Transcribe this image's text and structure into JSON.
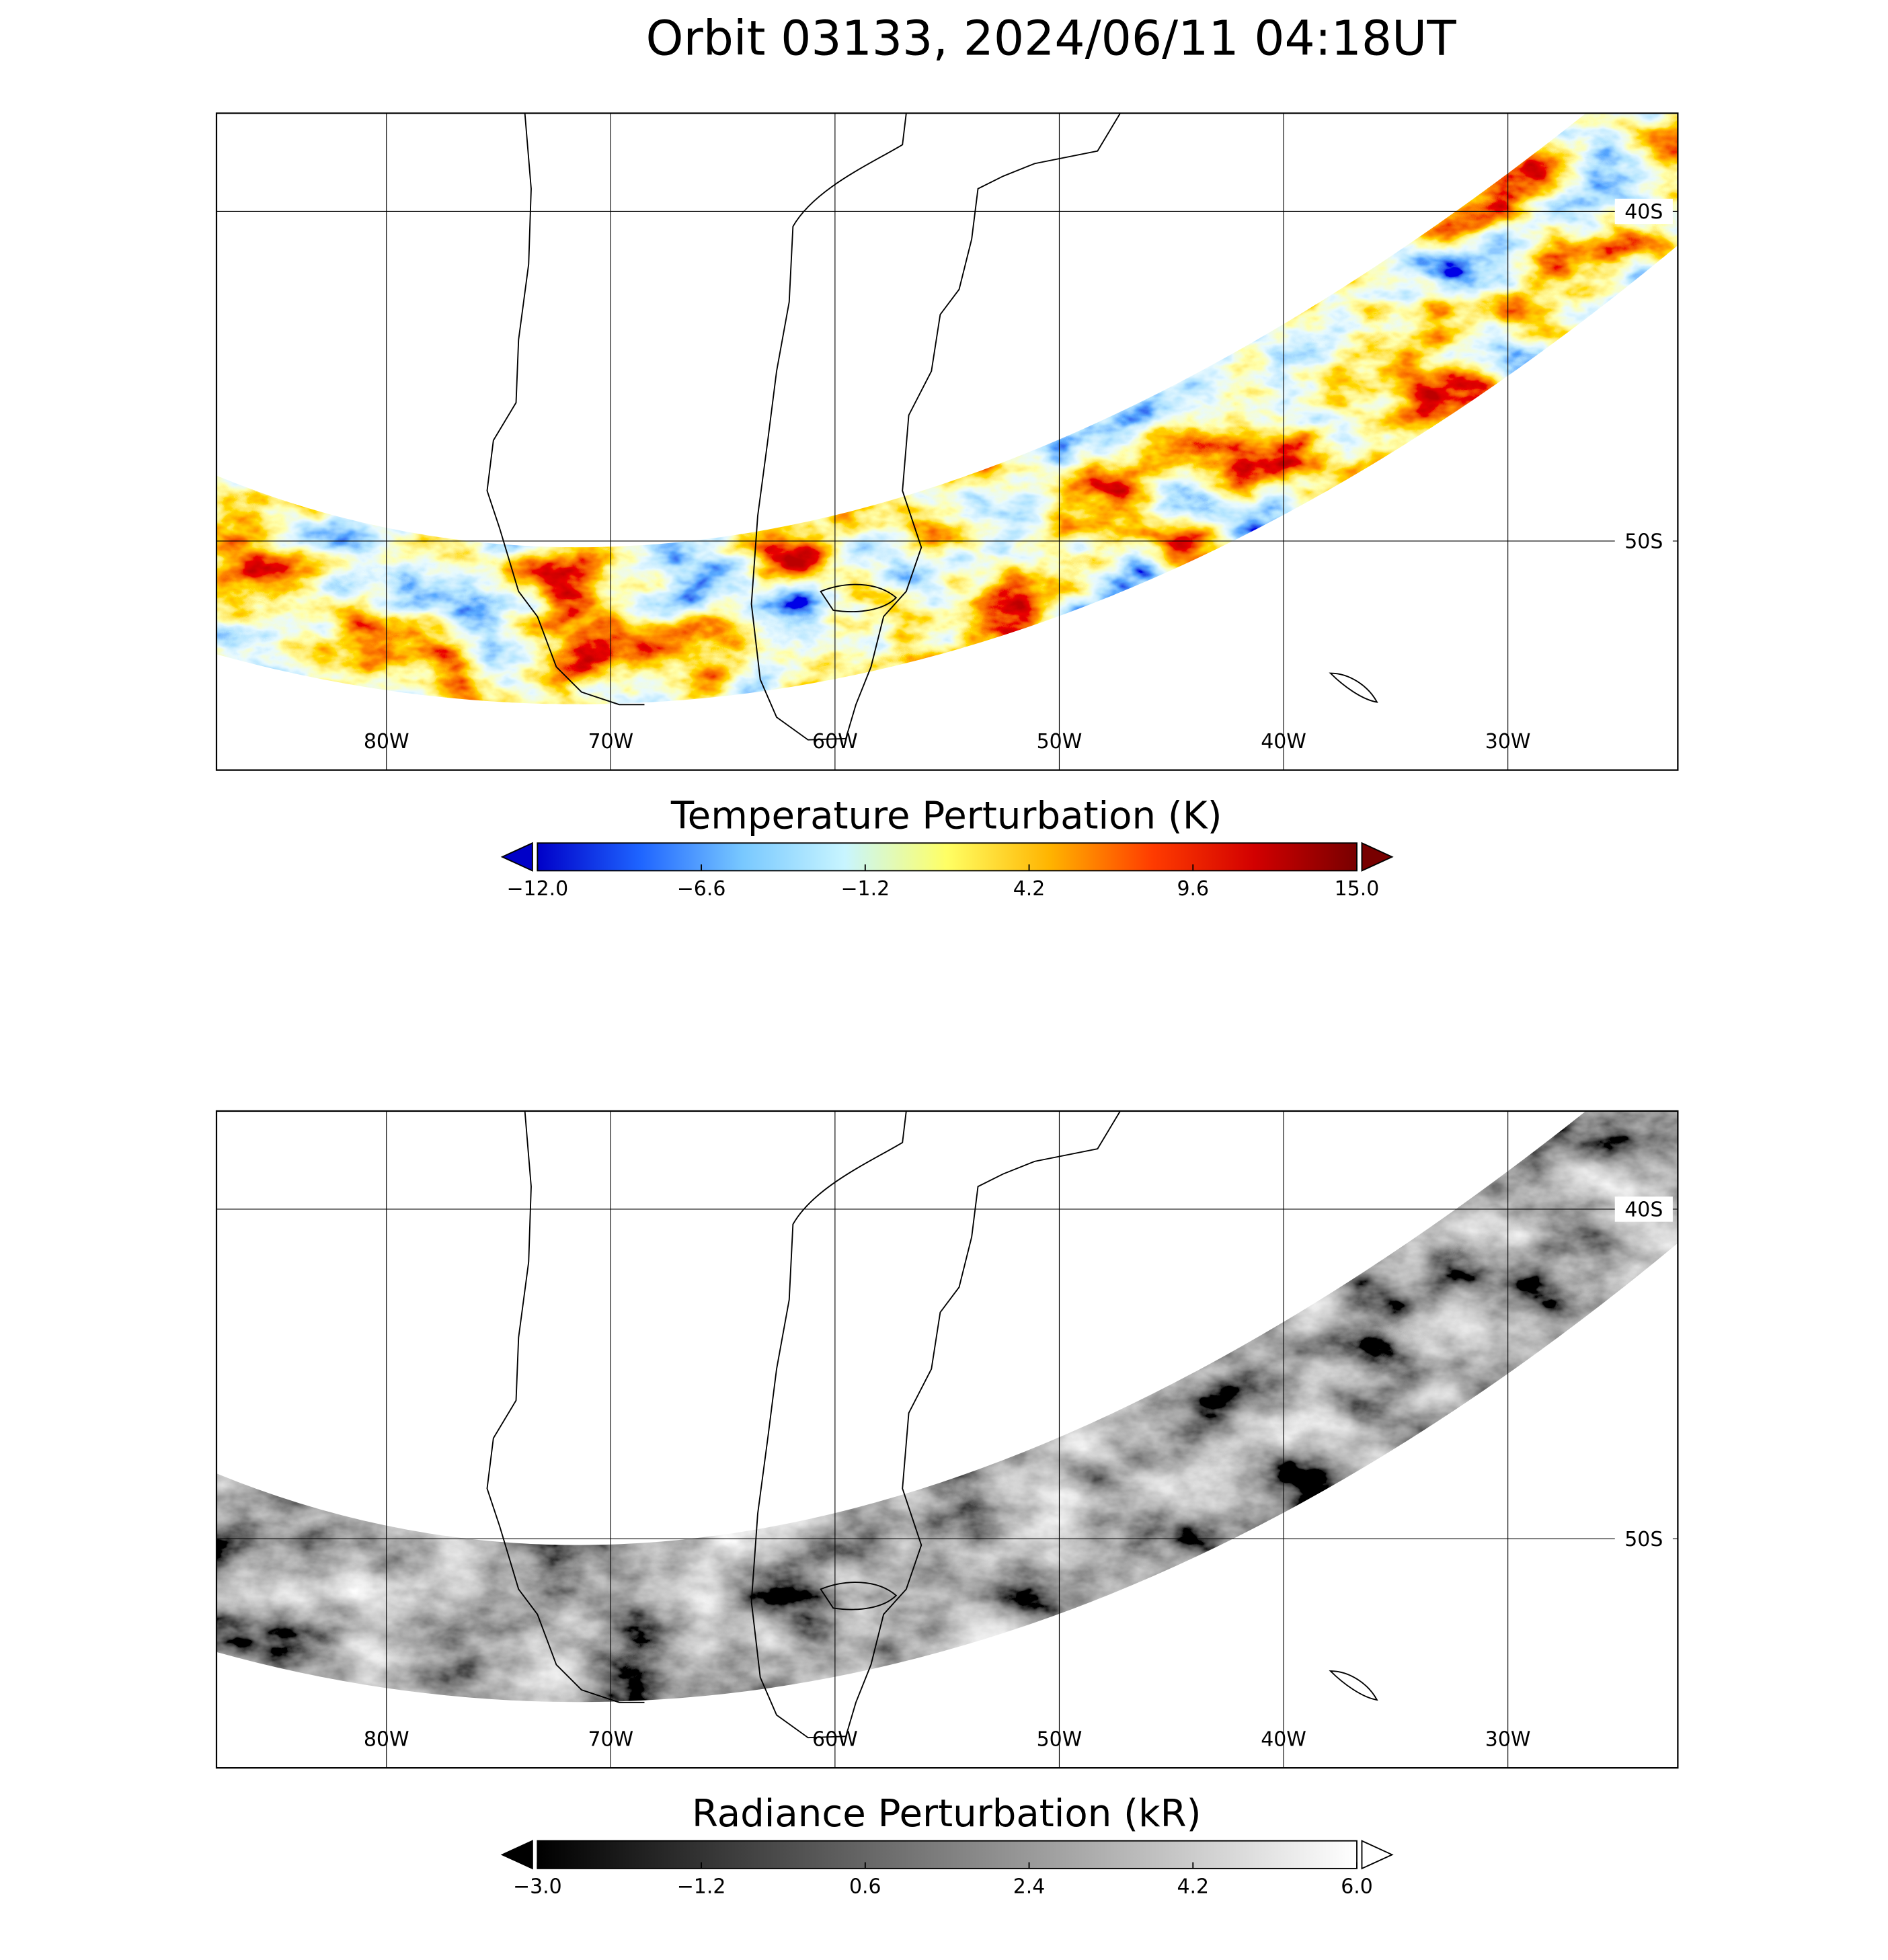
{
  "title": "Orbit 03133, 2024/06/11 04:18UT",
  "panels": [
    {
      "lon_ticks": [
        {
          "value": -80,
          "label": "80W"
        },
        {
          "value": -70,
          "label": "70W"
        },
        {
          "value": -60,
          "label": "60W"
        },
        {
          "value": -50,
          "label": "50W"
        },
        {
          "value": -40,
          "label": "40W"
        },
        {
          "value": -30,
          "label": "30W"
        }
      ],
      "lat_ticks": [
        {
          "value": -40,
          "label": "40S"
        },
        {
          "value": -50,
          "label": "50S"
        }
      ],
      "colorbar": {
        "title": "Temperature Perturbation (K)",
        "lim": [
          -12,
          15
        ],
        "ticks": [
          {
            "value": -12,
            "label": "−12.0"
          },
          {
            "value": -6.6,
            "label": "−6.6"
          },
          {
            "value": -1.2,
            "label": "−1.2"
          },
          {
            "value": 4.2,
            "label": "4.2"
          },
          {
            "value": 9.6,
            "label": "9.6"
          },
          {
            "value": 15,
            "label": "15.0"
          }
        ],
        "colors": [
          "#0000c8",
          "#1e64ff",
          "#78c8ff",
          "#c8f5ff",
          "#ffff64",
          "#ffb400",
          "#ff3c00",
          "#d20000",
          "#780000"
        ]
      }
    },
    {
      "lon_ticks": [
        {
          "value": -80,
          "label": "80W"
        },
        {
          "value": -70,
          "label": "70W"
        },
        {
          "value": -60,
          "label": "60W"
        },
        {
          "value": -50,
          "label": "50W"
        },
        {
          "value": -40,
          "label": "40W"
        },
        {
          "value": -30,
          "label": "30W"
        }
      ],
      "lat_ticks": [
        {
          "value": -40,
          "label": "40S"
        },
        {
          "value": -50,
          "label": "50S"
        }
      ],
      "colorbar": {
        "title": "Radiance Perturbation (kR)",
        "lim": [
          -3,
          6
        ],
        "ticks": [
          {
            "value": -3,
            "label": "−3.0"
          },
          {
            "value": -1.2,
            "label": "−1.2"
          },
          {
            "value": 0.6,
            "label": "0.6"
          },
          {
            "value": 2.4,
            "label": "2.4"
          },
          {
            "value": 4.2,
            "label": "4.2"
          },
          {
            "value": 6,
            "label": "6.0"
          }
        ],
        "colors": [
          "#000000",
          "#ffffff"
        ]
      }
    }
  ]
}
